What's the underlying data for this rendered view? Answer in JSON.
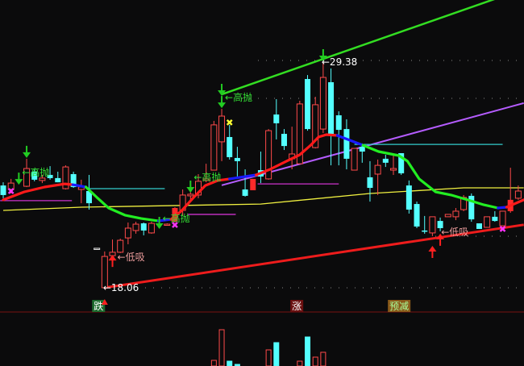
{
  "chart_data": {
    "type": "candlestick",
    "colors": {
      "background": "#0b0b0c",
      "up": "#ff4a4a",
      "down": "#54ffff",
      "flat": "#dddddd",
      "ma_up": "#ff1a1a",
      "ma_down": "#22ee22",
      "ma_flat": "#1a1aff",
      "upper_channel": "#33dd22",
      "lower_channel": "#ee1c1c",
      "trend_purple": "#b55cff",
      "long_ma": "#f0f040",
      "sell_signal": "#22cc22",
      "buy_signal": "#ff2020",
      "cross_marker": "#ff33ff",
      "warn_marker": "#ffff33",
      "level_cyan": "#33cccc",
      "level_magenta": "#cc33cc",
      "separator": "#7a1010"
    },
    "candles": [
      [
        23.19,
        23.35,
        22.55,
        22.71
      ],
      [
        22.99,
        23.52,
        22.79,
        23.31
      ],
      null,
      [
        23.15,
        24.53,
        23.11,
        24.04
      ],
      [
        23.88,
        24.0,
        23.4,
        23.48
      ],
      [
        23.44,
        23.72,
        23.31,
        23.56
      ],
      [
        23.72,
        24.16,
        23.48,
        23.56
      ],
      [
        23.56,
        23.88,
        23.35,
        23.35
      ],
      [
        23.03,
        24.2,
        22.99,
        24.12
      ],
      [
        23.76,
        23.88,
        23.07,
        23.11
      ],
      [
        22.99,
        23.48,
        22.3,
        23.11
      ],
      [
        22.91,
        23.72,
        21.98,
        22.3
      ],
      [
        20.04,
        20.04,
        20.04,
        20.04
      ],
      [
        18.06,
        19.88,
        18.06,
        19.63
      ],
      [
        19.67,
        20.48,
        19.23,
        19.84
      ],
      [
        19.84,
        20.52,
        19.8,
        20.44
      ],
      [
        20.56,
        21.33,
        20.24,
        21.05
      ],
      [
        20.93,
        21.37,
        20.77,
        21.25
      ],
      [
        21.29,
        21.33,
        20.69,
        20.93
      ],
      [
        20.81,
        21.37,
        20.77,
        21.29
      ],
      null,
      [
        21.21,
        21.29,
        21.17,
        21.25
      ],
      [
        21.37,
        22.1,
        21.33,
        22.06
      ],
      [
        21.94,
        22.99,
        21.66,
        22.71
      ],
      [
        22.67,
        22.99,
        22.42,
        22.75
      ],
      [
        22.71,
        23.76,
        22.55,
        23.4
      ],
      [
        23.44,
        24.28,
        23.35,
        23.52
      ],
      [
        23.96,
        26.43,
        23.96,
        26.23
      ],
      [
        25.38,
        27.03,
        24.41,
        26.67
      ],
      [
        25.62,
        26.23,
        24.49,
        24.61
      ],
      [
        24.57,
        25.13,
        23.64,
        24.41
      ],
      [
        22.99,
        24.0,
        22.63,
        22.67
      ],
      [
        22.95,
        23.52,
        22.95,
        23.52
      ],
      [
        23.96,
        24.89,
        23.31,
        23.64
      ],
      [
        23.52,
        26.02,
        23.48,
        25.94
      ],
      [
        26.75,
        27.52,
        25.5,
        26.31
      ],
      [
        25.78,
        26.02,
        24.97,
        25.17
      ],
      [
        24.53,
        26.14,
        24.0,
        24.77
      ],
      [
        24.28,
        27.44,
        24.28,
        27.28
      ],
      [
        28.53,
        28.73,
        25.94,
        26.02
      ],
      [
        25.09,
        27.64,
        25.05,
        27.24
      ],
      [
        26.02,
        29.38,
        25.82,
        28.61
      ],
      [
        28.37,
        29.06,
        24.2,
        25.74
      ],
      [
        26.71,
        26.91,
        24.2,
        25.98
      ],
      [
        26.02,
        26.51,
        24.0,
        24.53
      ],
      [
        23.96,
        25.05,
        23.96,
        25.05
      ],
      [
        25.13,
        25.3,
        24.33,
        24.89
      ],
      [
        23.6,
        24.41,
        22.38,
        23.07
      ],
      [
        23.76,
        24.49,
        22.71,
        24.2
      ],
      [
        24.53,
        24.73,
        24.12,
        24.33
      ],
      [
        23.96,
        24.69,
        23.72,
        24.04
      ],
      [
        24.81,
        24.81,
        23.72,
        23.8
      ],
      [
        23.19,
        23.44,
        21.78,
        21.98
      ],
      [
        22.26,
        22.38,
        21.05,
        21.13
      ],
      [
        20.93,
        21.66,
        20.77,
        20.89
      ],
      [
        20.81,
        21.62,
        20.65,
        21.62
      ],
      [
        21.41,
        21.58,
        20.89,
        21.05
      ],
      [
        21.62,
        21.74,
        21.62,
        21.74
      ],
      [
        21.62,
        22.06,
        21.45,
        21.9
      ],
      [
        21.98,
        22.71,
        21.9,
        22.59
      ],
      [
        22.67,
        22.79,
        21.37,
        21.49
      ],
      [
        21.29,
        21.29,
        21.01,
        21.01
      ],
      [
        21.09,
        21.62,
        21.09,
        21.62
      ],
      [
        21.62,
        21.9,
        21.37,
        21.41
      ],
      [
        21.17,
        21.9,
        21.17,
        21.9
      ],
      [
        21.9,
        24.08,
        21.82,
        22.47
      ],
      [
        22.55,
        23.19,
        22.47,
        22.91
      ]
    ],
    "solid_bars": [
      22,
      32,
      65
    ],
    "ma_segments": [
      {
        "trend": "up",
        "points": [
          [
            0,
            22.47
          ],
          [
            2.7,
            22.87
          ],
          [
            5.3,
            23.11
          ],
          [
            7.9,
            23.27
          ],
          [
            8.9,
            23.23
          ]
        ]
      },
      {
        "trend": "flat",
        "points": [
          [
            8.9,
            23.23
          ],
          [
            10.6,
            23.11
          ]
        ]
      },
      {
        "trend": "down",
        "points": [
          [
            10.6,
            23.11
          ],
          [
            12,
            22.59
          ],
          [
            13.5,
            22.06
          ],
          [
            15.6,
            21.7
          ],
          [
            17.7,
            21.53
          ],
          [
            19.9,
            21.41
          ]
        ]
      },
      {
        "trend": "flat",
        "points": [
          [
            19.9,
            21.41
          ],
          [
            21.5,
            21.49
          ]
        ]
      },
      {
        "trend": "up",
        "points": [
          [
            21.5,
            21.49
          ],
          [
            22.8,
            21.9
          ],
          [
            24.4,
            22.59
          ],
          [
            25.9,
            23.19
          ],
          [
            27.5,
            23.44
          ],
          [
            29,
            23.52
          ]
        ]
      },
      {
        "trend": "flat",
        "points": [
          [
            29,
            23.52
          ],
          [
            32.4,
            23.72
          ]
        ]
      },
      {
        "trend": "up",
        "points": [
          [
            32.4,
            23.72
          ],
          [
            34.2,
            24.0
          ],
          [
            36.3,
            24.41
          ],
          [
            38,
            24.73
          ],
          [
            39.4,
            25.21
          ],
          [
            40.4,
            25.62
          ],
          [
            41.4,
            25.74
          ],
          [
            42.8,
            25.7
          ]
        ]
      },
      {
        "trend": "flat",
        "points": [
          [
            42.8,
            25.7
          ],
          [
            46.1,
            25.21
          ]
        ]
      },
      {
        "trend": "down",
        "points": [
          [
            46.1,
            25.21
          ],
          [
            48.1,
            24.89
          ],
          [
            50.7,
            24.69
          ],
          [
            51.8,
            24.41
          ],
          [
            53.3,
            23.52
          ],
          [
            55.4,
            22.87
          ],
          [
            57.4,
            22.71
          ],
          [
            59.5,
            22.47
          ],
          [
            61.6,
            22.22
          ],
          [
            63.4,
            22.06
          ]
        ]
      },
      {
        "trend": "flat",
        "points": [
          [
            63.4,
            22.06
          ],
          [
            64.5,
            22.1
          ]
        ]
      },
      {
        "trend": "up",
        "points": [
          [
            64.5,
            22.1
          ],
          [
            66.7,
            22.47
          ]
        ]
      }
    ],
    "long_ma": [
      [
        0,
        21.94
      ],
      [
        10,
        22.1
      ],
      [
        33,
        22.26
      ],
      [
        47,
        22.79
      ],
      [
        59,
        23.07
      ],
      [
        66.7,
        23.07
      ]
    ],
    "upper_channel": [
      [
        28,
        27.76
      ],
      [
        66.7,
        33.05
      ]
    ],
    "trend_purple": [
      [
        28,
        23.2
      ],
      [
        66.7,
        27.32
      ]
    ],
    "lower_channel": [
      [
        13,
        18.06
      ],
      [
        66.7,
        21.22
      ]
    ],
    "levels": [
      {
        "kind": "cyan",
        "price": 23.03,
        "from": 10.6,
        "to": 20.7
      },
      {
        "kind": "magenta",
        "price": 22.43,
        "from": -0.4,
        "to": 8.8
      },
      {
        "kind": "magenta",
        "price": 21.74,
        "from": 23.6,
        "to": 29.8
      },
      {
        "kind": "magenta",
        "price": 23.27,
        "from": 32.6,
        "to": 43
      },
      {
        "kind": "cyan",
        "price": 25.25,
        "from": 45,
        "to": 64
      }
    ],
    "sell_arrows": [
      [
        2,
        23.19
      ],
      [
        3,
        24.53
      ],
      [
        20,
        20.97
      ],
      [
        24,
        22.79
      ],
      [
        28,
        27.64
      ],
      [
        28,
        27.03
      ],
      [
        41,
        29.38
      ]
    ],
    "buy_arrows": [
      [
        14,
        19.71
      ],
      [
        55,
        20.16
      ],
      [
        56,
        20.77
      ]
    ],
    "cross_markers": [
      [
        1,
        22.91
      ],
      [
        22,
        21.21
      ],
      [
        64,
        21.01
      ]
    ],
    "warn_markers": [
      [
        29,
        26.35
      ]
    ],
    "sell_labels": [
      {
        "text": "←高抛",
        "bar": 2,
        "price": 23.88
      },
      {
        "text": "←高抛",
        "bar": 20,
        "price": 21.58
      },
      {
        "text": "←高抛",
        "bar": 24,
        "price": 23.64
      },
      {
        "text": "←高抛",
        "bar": 28,
        "price": 27.64
      }
    ],
    "buy_labels": [
      {
        "text": "←低吸",
        "bar": 14,
        "price": 19.63
      },
      {
        "text": "←低吸",
        "bar": 55.5,
        "price": 20.89
      }
    ],
    "extremes": [
      {
        "text": "←29.38",
        "bar": 41,
        "price": 29.38
      },
      {
        "text": "←18.06",
        "bar": 13,
        "price": 18.06
      }
    ],
    "event_tags": [
      {
        "text": "跌",
        "bar": 11.6,
        "bg": "#1d6b2e",
        "fg": "#ffffff"
      },
      {
        "text": "涨",
        "bar": 37,
        "bg": "#6a1010",
        "fg": "#ffffff"
      },
      {
        "text": "预减",
        "bar": 49.5,
        "bg": "#8a5a1a",
        "fg": "#a8ff9a"
      }
    ],
    "volume": [
      [
        27,
        7
      ],
      [
        28,
        45
      ],
      [
        29,
        6
      ],
      [
        30,
        2
      ],
      [
        34,
        20
      ],
      [
        35,
        29
      ],
      [
        38,
        6
      ],
      [
        39,
        36
      ],
      [
        40,
        11
      ],
      [
        41,
        17
      ]
    ]
  }
}
